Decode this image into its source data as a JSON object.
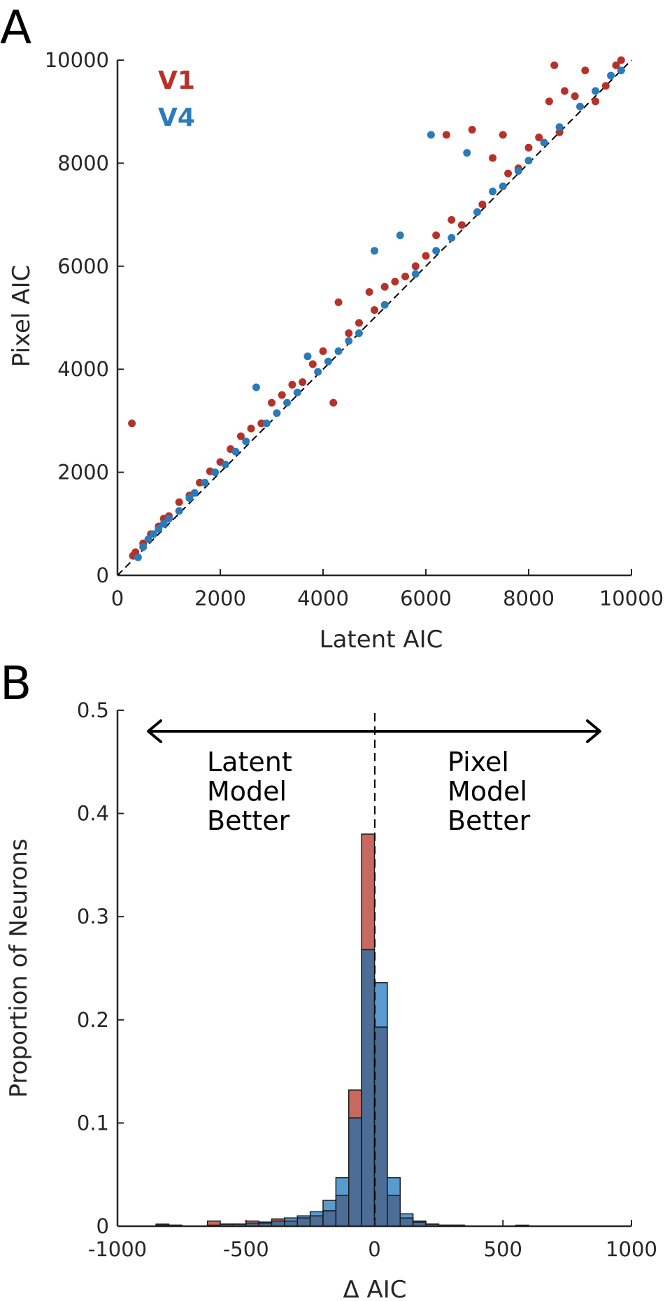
{
  "chart_data": [
    {
      "panel_label": "A",
      "type": "scatter",
      "xlabel": "Latent AIC",
      "ylabel": "Pixel AIC",
      "xlim": [
        0,
        10000
      ],
      "ylim": [
        0,
        10000
      ],
      "xticks": [
        "0",
        "2000",
        "4000",
        "6000",
        "8000",
        "10000"
      ],
      "yticks": [
        "0",
        "2000",
        "4000",
        "6000",
        "8000",
        "10000"
      ],
      "reference_line": "identity (dashed)",
      "legend": [
        {
          "label": "V1",
          "color": "#b63228"
        },
        {
          "label": "V4",
          "color": "#2b7bba"
        }
      ],
      "series": [
        {
          "name": "V1",
          "color": "#b63228",
          "points": [
            [
              280,
              2950
            ],
            [
              300,
              380
            ],
            [
              350,
              450
            ],
            [
              500,
              620
            ],
            [
              650,
              800
            ],
            [
              800,
              950
            ],
            [
              900,
              1100
            ],
            [
              1000,
              1150
            ],
            [
              1200,
              1420
            ],
            [
              1400,
              1550
            ],
            [
              1600,
              1800
            ],
            [
              1800,
              2020
            ],
            [
              2000,
              2200
            ],
            [
              2200,
              2450
            ],
            [
              2400,
              2700
            ],
            [
              2600,
              2850
            ],
            [
              2800,
              2950
            ],
            [
              3000,
              3350
            ],
            [
              3200,
              3500
            ],
            [
              3400,
              3700
            ],
            [
              3600,
              3750
            ],
            [
              3800,
              4100
            ],
            [
              4000,
              4350
            ],
            [
              4200,
              3350
            ],
            [
              4300,
              5300
            ],
            [
              4500,
              4700
            ],
            [
              4700,
              4900
            ],
            [
              4900,
              5500
            ],
            [
              5000,
              5150
            ],
            [
              5200,
              5600
            ],
            [
              5400,
              5700
            ],
            [
              5600,
              5800
            ],
            [
              5800,
              6000
            ],
            [
              6000,
              6200
            ],
            [
              6200,
              6600
            ],
            [
              6400,
              8550
            ],
            [
              6500,
              6900
            ],
            [
              6700,
              6800
            ],
            [
              6900,
              8650
            ],
            [
              7100,
              7200
            ],
            [
              7300,
              8100
            ],
            [
              7500,
              8550
            ],
            [
              7600,
              7800
            ],
            [
              7800,
              7900
            ],
            [
              8000,
              8300
            ],
            [
              8200,
              8500
            ],
            [
              8400,
              9200
            ],
            [
              8500,
              9900
            ],
            [
              8600,
              8600
            ],
            [
              8700,
              9400
            ],
            [
              8900,
              9300
            ],
            [
              9100,
              9800
            ],
            [
              9300,
              9200
            ],
            [
              9500,
              9500
            ],
            [
              9700,
              9900
            ],
            [
              9800,
              10000
            ]
          ]
        },
        {
          "name": "V4",
          "color": "#2b7bba",
          "points": [
            [
              400,
              350
            ],
            [
              500,
              550
            ],
            [
              600,
              700
            ],
            [
              700,
              800
            ],
            [
              800,
              900
            ],
            [
              900,
              1000
            ],
            [
              1000,
              1100
            ],
            [
              1200,
              1250
            ],
            [
              1400,
              1500
            ],
            [
              1500,
              1600
            ],
            [
              1700,
              1800
            ],
            [
              1900,
              2000
            ],
            [
              2100,
              2150
            ],
            [
              2300,
              2400
            ],
            [
              2500,
              2600
            ],
            [
              2700,
              3650
            ],
            [
              2900,
              2950
            ],
            [
              3100,
              3150
            ],
            [
              3300,
              3350
            ],
            [
              3500,
              3550
            ],
            [
              3700,
              4250
            ],
            [
              3900,
              3950
            ],
            [
              4100,
              4150
            ],
            [
              4300,
              4350
            ],
            [
              4500,
              4550
            ],
            [
              4700,
              4700
            ],
            [
              5000,
              6300
            ],
            [
              5200,
              5250
            ],
            [
              5500,
              6600
            ],
            [
              5800,
              5850
            ],
            [
              6100,
              8550
            ],
            [
              6200,
              6300
            ],
            [
              6500,
              6550
            ],
            [
              6800,
              8200
            ],
            [
              7000,
              7050
            ],
            [
              7300,
              7450
            ],
            [
              7500,
              7550
            ],
            [
              7800,
              7850
            ],
            [
              8000,
              8050
            ],
            [
              8300,
              8400
            ],
            [
              8600,
              8700
            ],
            [
              9000,
              9100
            ],
            [
              9300,
              9400
            ],
            [
              9600,
              9700
            ],
            [
              9800,
              9800
            ]
          ]
        }
      ]
    },
    {
      "panel_label": "B",
      "type": "bar",
      "xlabel": "Δ AIC",
      "ylabel": "Proportion of Neurons",
      "xlim": [
        -1000,
        1000
      ],
      "ylim": [
        0,
        0.5
      ],
      "xticks": [
        "-1000",
        "-500",
        "0",
        "500",
        "1000"
      ],
      "yticks": [
        "0",
        "0.1",
        "0.2",
        "0.3",
        "0.4",
        "0.5"
      ],
      "bin_width": 50,
      "bin_starts": [
        -1000,
        -950,
        -900,
        -850,
        -800,
        -750,
        -700,
        -650,
        -600,
        -550,
        -500,
        -450,
        -400,
        -350,
        -300,
        -250,
        -200,
        -150,
        -100,
        -50,
        0,
        50,
        100,
        150,
        200,
        250,
        300,
        350,
        400,
        450,
        500,
        550,
        600,
        650,
        700,
        750,
        800,
        850,
        900,
        950
      ],
      "series": [
        {
          "name": "V1",
          "color": "#c8695f",
          "values": [
            0,
            0,
            0,
            0.002,
            0.001,
            0,
            0,
            0.005,
            0.002,
            0.002,
            0.005,
            0.003,
            0.007,
            0.005,
            0.008,
            0.01,
            0.015,
            0.03,
            0.132,
            0.38,
            0.193,
            0.03,
            0.008,
            0.005,
            0.002,
            0.001,
            0.001,
            0,
            0,
            0,
            0,
            0.001,
            0,
            0,
            0,
            0,
            0,
            0,
            0,
            0
          ]
        },
        {
          "name": "V4",
          "color": "#5a9bcf",
          "values": [
            0,
            0,
            0,
            0.001,
            0.001,
            0,
            0,
            0.001,
            0.002,
            0.002,
            0.003,
            0.004,
            0.005,
            0.008,
            0.01,
            0.014,
            0.025,
            0.047,
            0.105,
            0.268,
            0.236,
            0.047,
            0.012,
            0.004,
            0.002,
            0.001,
            0.001,
            0,
            0,
            0,
            0,
            0,
            0,
            0,
            0,
            0,
            0,
            0,
            0,
            0
          ]
        }
      ],
      "annotations": {
        "left_lines": [
          "Latent",
          "Model",
          "Better"
        ],
        "right_lines": [
          "Pixel",
          "Model",
          "Better"
        ]
      }
    }
  ]
}
